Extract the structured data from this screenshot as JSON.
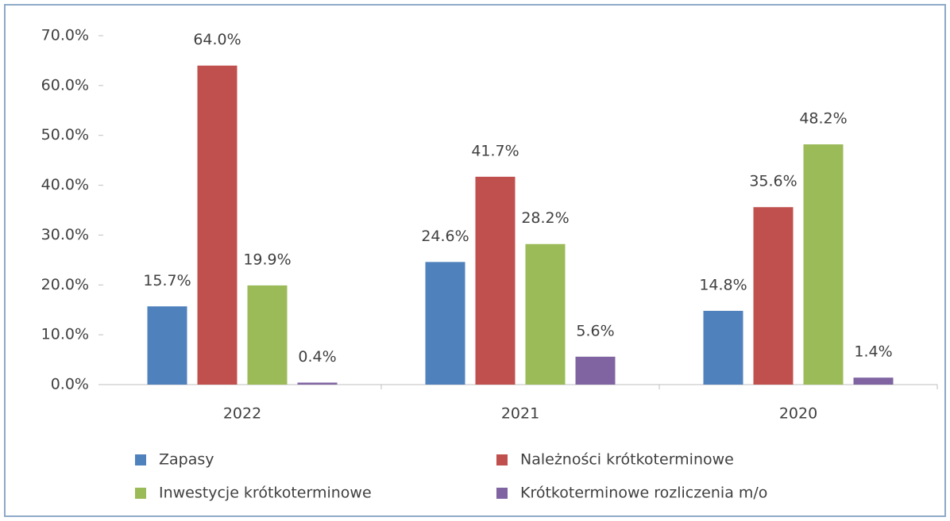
{
  "chart_data": {
    "type": "bar",
    "categories": [
      "2022",
      "2021",
      "2020"
    ],
    "series": [
      {
        "name": "Zapasy",
        "color": "#4f81bd",
        "values": [
          15.7,
          24.6,
          14.8
        ],
        "value_labels": [
          "15.7%",
          "24.6%",
          "14.8%"
        ]
      },
      {
        "name": "Należności krótkoterminowe",
        "color": "#c0504d",
        "values": [
          64.0,
          41.7,
          35.6
        ],
        "value_labels": [
          "64.0%",
          "41.7%",
          "35.6%"
        ]
      },
      {
        "name": "Inwestycje krótkoterminowe",
        "color": "#9bbb59",
        "values": [
          19.9,
          28.2,
          48.2
        ],
        "value_labels": [
          "19.9%",
          "28.2%",
          "48.2%"
        ]
      },
      {
        "name": "Krótkoterminowe rozliczenia m/o",
        "color": "#8064a2",
        "values": [
          0.4,
          5.6,
          1.4
        ],
        "value_labels": [
          "0.4%",
          "5.6%",
          "1.4%"
        ]
      }
    ],
    "ylim": [
      0,
      70
    ],
    "yticks": [
      {
        "value": 0,
        "label": "0.0%"
      },
      {
        "value": 10,
        "label": "10.0%"
      },
      {
        "value": 20,
        "label": "20.0%"
      },
      {
        "value": 30,
        "label": "30.0%"
      },
      {
        "value": 40,
        "label": "40.0%"
      },
      {
        "value": 50,
        "label": "50.0%"
      },
      {
        "value": 60,
        "label": "60.0%"
      },
      {
        "value": 70,
        "label": "70.0%"
      }
    ],
    "legend": "bottom"
  }
}
